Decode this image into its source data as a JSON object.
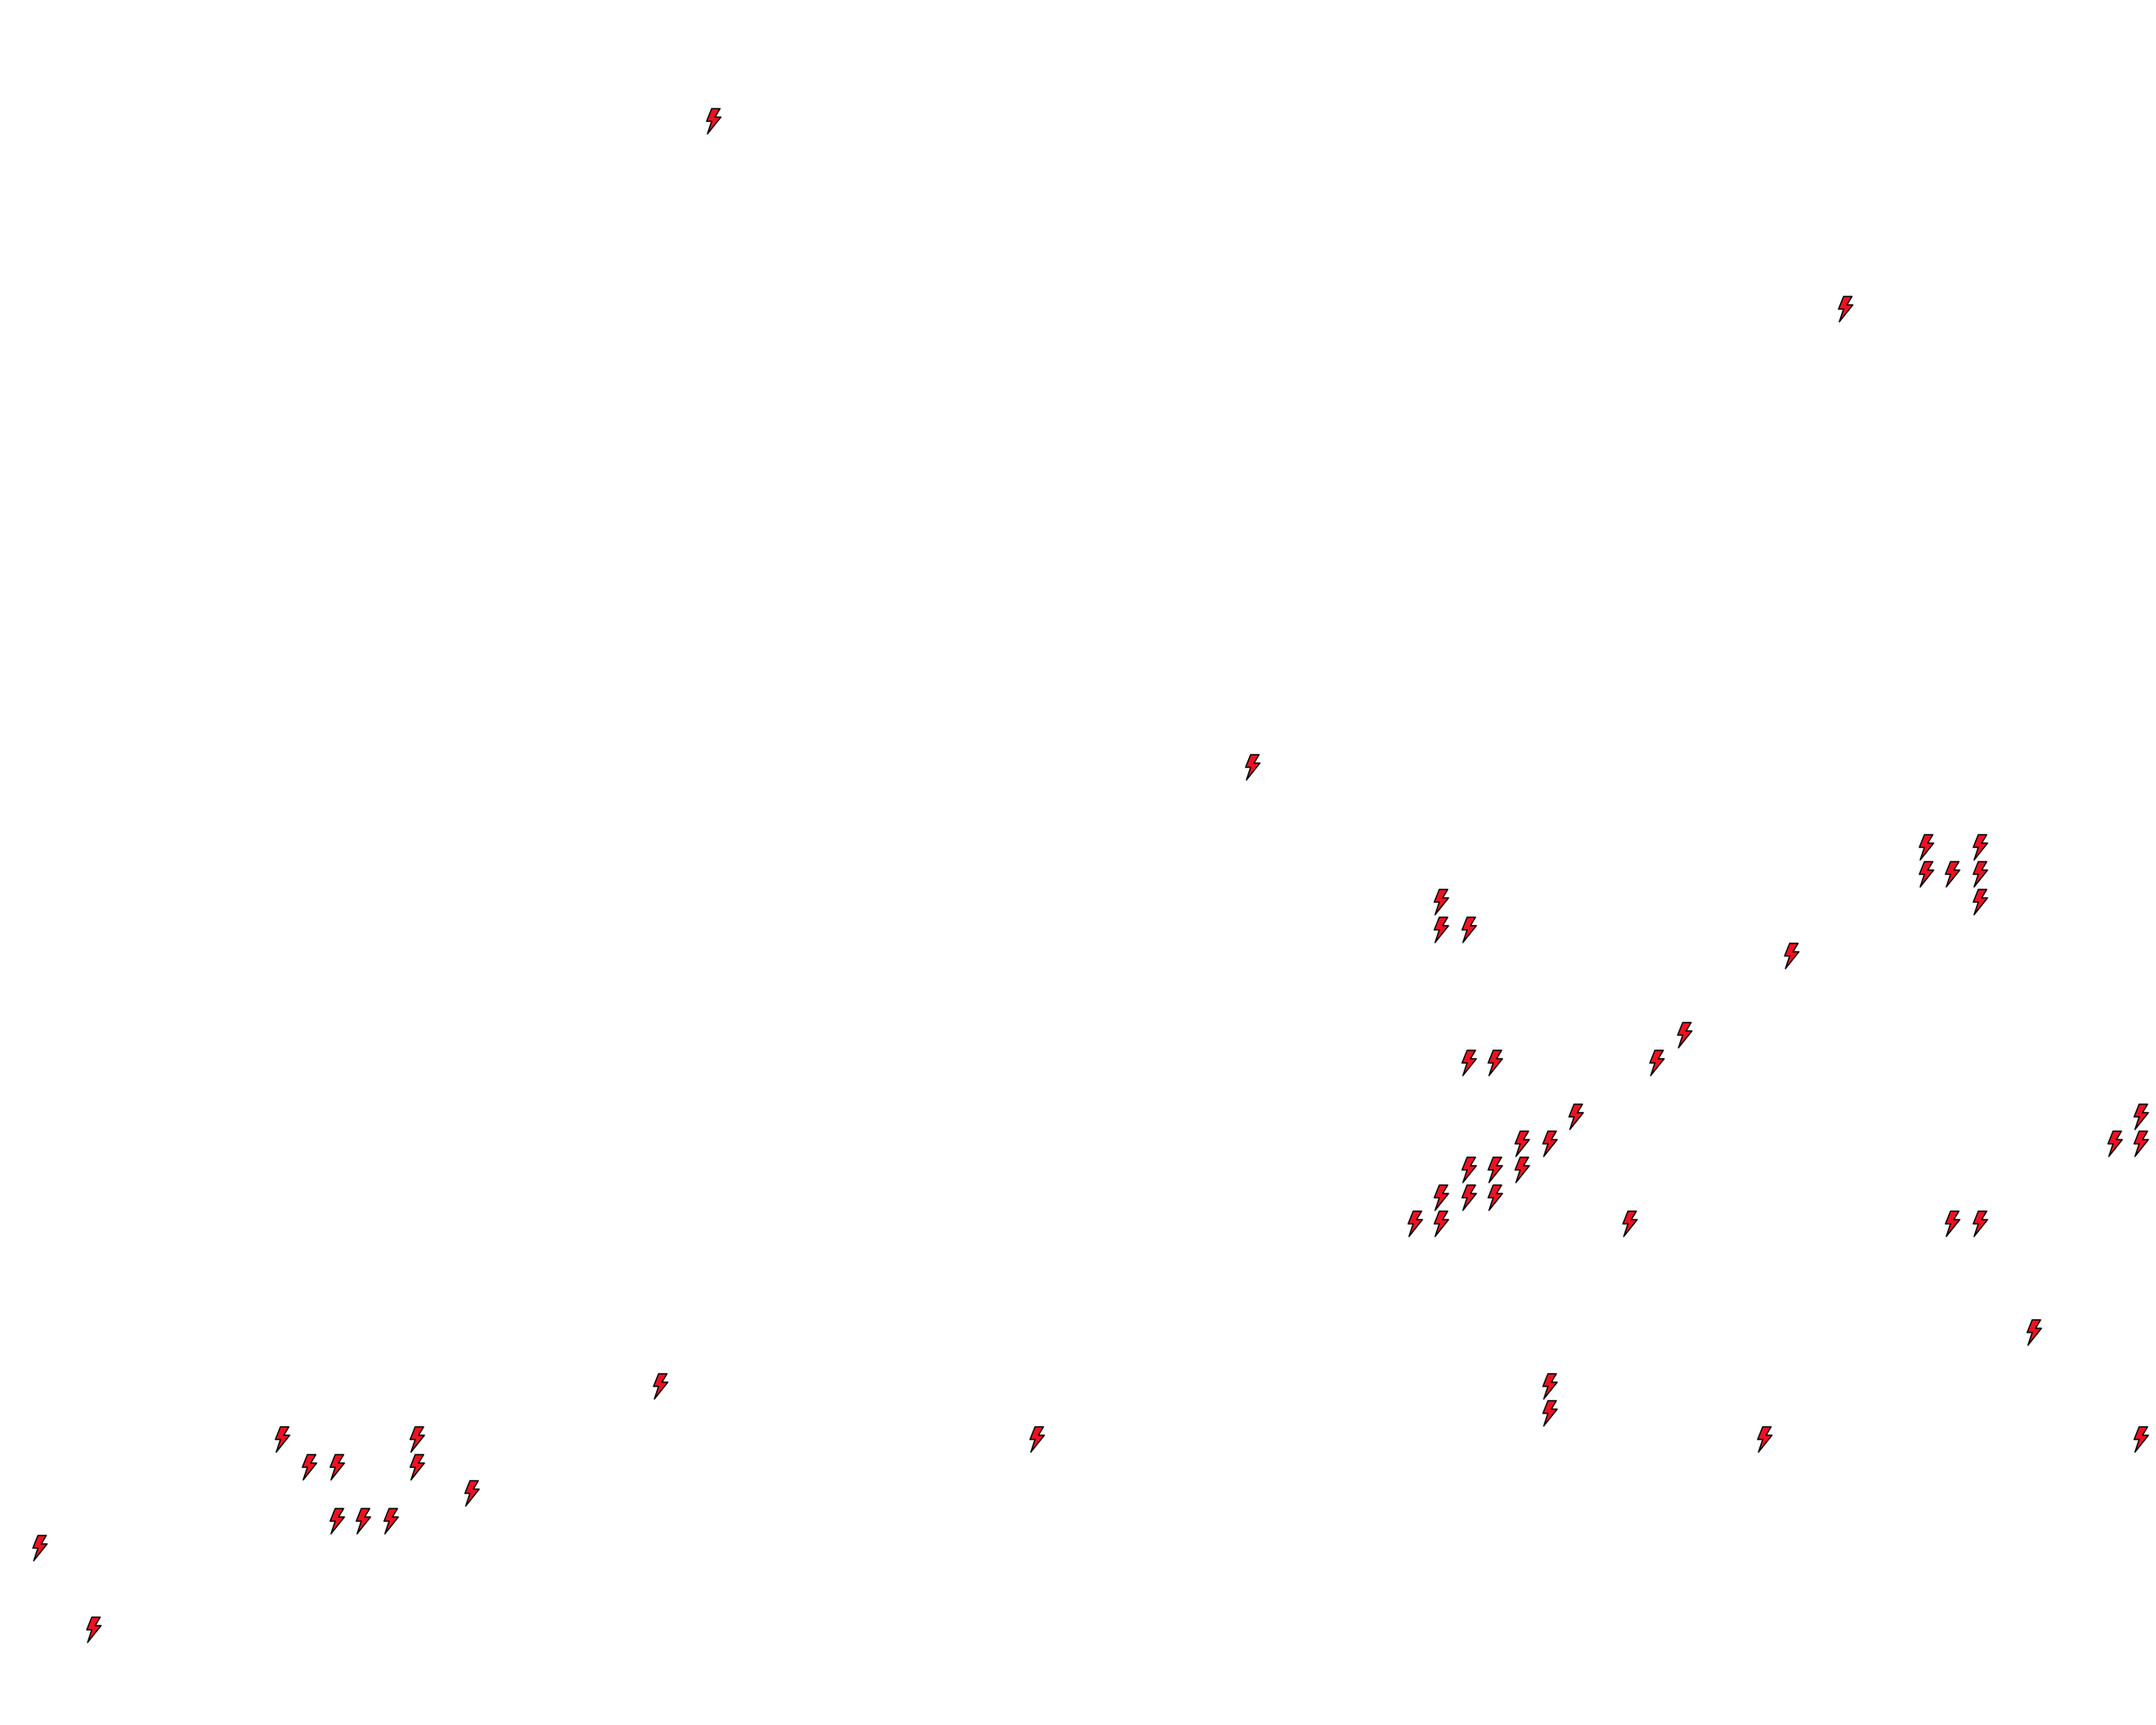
{
  "map": {
    "background": "#ffffff",
    "marker_icon": "lightning-bolt-icon",
    "marker_fill": "#ee1122",
    "marker_stroke": "#000000"
  }
}
